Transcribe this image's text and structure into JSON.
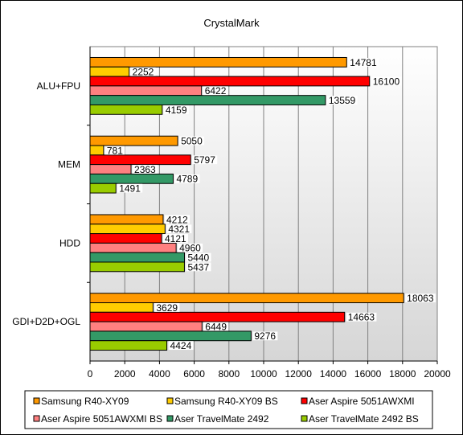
{
  "chart_data": {
    "type": "bar",
    "orientation": "horizontal",
    "title": "CrystalMark",
    "xlabel": "",
    "ylabel": "",
    "xlim": [
      0,
      20000
    ],
    "grid": true,
    "legend_position": "bottom",
    "categories": [
      "ALU+FPU",
      "MEM",
      "HDD",
      "GDI+D2D+OGL"
    ],
    "x_ticks": [
      "0",
      "2000",
      "4000",
      "6000",
      "8000",
      "10000",
      "12000",
      "14000",
      "16000",
      "18000",
      "20000"
    ],
    "series": [
      {
        "name": "Samsung R40-XY09",
        "color": "#ff9900",
        "values": [
          14781,
          5050,
          4212,
          18063
        ]
      },
      {
        "name": "Samsung R40-XY09 BS",
        "color": "#ffcc00",
        "values": [
          2252,
          781,
          4321,
          3629
        ]
      },
      {
        "name": "Aser Aspire 5051AWXMI",
        "color": "#ff0000",
        "values": [
          16100,
          5797,
          4121,
          14663
        ]
      },
      {
        "name": "Aser Aspire 5051AWXMI BS",
        "color": "#ff8080",
        "values": [
          6422,
          2363,
          4960,
          6449
        ]
      },
      {
        "name": "Aser TravelMate 2492",
        "color": "#339966",
        "values": [
          13559,
          4789,
          5440,
          9276
        ]
      },
      {
        "name": "Aser TravelMate 2492 BS",
        "color": "#99cc00",
        "values": [
          4159,
          1491,
          5437,
          4424
        ]
      }
    ]
  }
}
